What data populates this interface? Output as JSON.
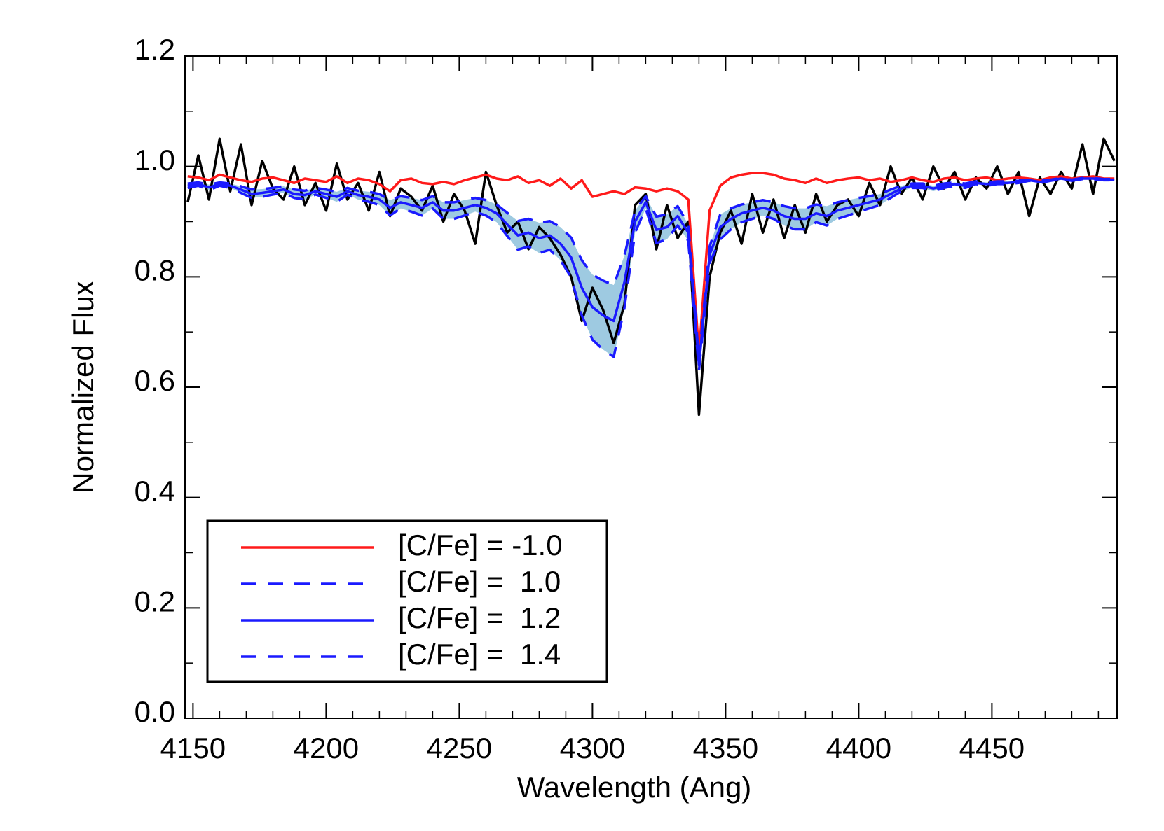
{
  "chart_data": {
    "type": "line",
    "xlabel": "Wavelength (Ang)",
    "ylabel": "Normalized Flux",
    "xlim": [
      4147,
      4497
    ],
    "ylim": [
      0,
      1.2
    ],
    "xticks": [
      4150,
      4200,
      4250,
      4300,
      4350,
      4400,
      4450
    ],
    "xminorticks": [
      4160,
      4170,
      4180,
      4190,
      4210,
      4220,
      4230,
      4240,
      4260,
      4270,
      4280,
      4290,
      4310,
      4320,
      4330,
      4340,
      4360,
      4370,
      4380,
      4390,
      4410,
      4420,
      4430,
      4440,
      4460,
      4470,
      4480,
      4490
    ],
    "yticks": [
      {
        "value": 0,
        "label": "0.0"
      },
      0.2,
      0.4,
      0.6,
      0.8,
      {
        "value": 1,
        "label": "1.0"
      },
      1.2
    ],
    "yminorticks": [
      0.1,
      0.3,
      0.5,
      0.7,
      0.9,
      1.1
    ],
    "legend": "lower left",
    "fill_between": {
      "series": [
        1,
        3
      ],
      "color": "#9ecae1"
    },
    "x": [
      4148,
      4152,
      4156,
      4160,
      4164,
      4168,
      4172,
      4176,
      4180,
      4184,
      4188,
      4192,
      4196,
      4200,
      4204,
      4208,
      4212,
      4216,
      4220,
      4224,
      4228,
      4232,
      4236,
      4240,
      4244,
      4248,
      4252,
      4256,
      4260,
      4264,
      4268,
      4272,
      4276,
      4280,
      4284,
      4288,
      4292,
      4296,
      4300,
      4304,
      4308,
      4312,
      4316,
      4320,
      4324,
      4328,
      4332,
      4336,
      4340,
      4344,
      4348,
      4352,
      4356,
      4360,
      4364,
      4368,
      4372,
      4376,
      4380,
      4384,
      4388,
      4392,
      4396,
      4400,
      4404,
      4408,
      4412,
      4416,
      4420,
      4424,
      4428,
      4432,
      4436,
      4440,
      4444,
      4448,
      4452,
      4456,
      4460,
      4464,
      4468,
      4472,
      4476,
      4480,
      4484,
      4488,
      4492,
      4496
    ],
    "series": [
      {
        "name": "[C/Fe] = -1.0",
        "color": "#ff1a1a",
        "dash": false,
        "values": [
          0.982,
          0.98,
          0.975,
          0.985,
          0.98,
          0.975,
          0.972,
          0.978,
          0.98,
          0.975,
          0.97,
          0.978,
          0.975,
          0.972,
          0.982,
          0.97,
          0.978,
          0.975,
          0.968,
          0.955,
          0.975,
          0.978,
          0.97,
          0.968,
          0.972,
          0.968,
          0.975,
          0.98,
          0.985,
          0.978,
          0.975,
          0.982,
          0.97,
          0.975,
          0.965,
          0.978,
          0.96,
          0.975,
          0.945,
          0.95,
          0.955,
          0.95,
          0.962,
          0.96,
          0.955,
          0.96,
          0.955,
          0.94,
          0.66,
          0.92,
          0.965,
          0.98,
          0.985,
          0.988,
          0.988,
          0.985,
          0.978,
          0.975,
          0.97,
          0.978,
          0.97,
          0.975,
          0.978,
          0.98,
          0.975,
          0.978,
          0.972,
          0.975,
          0.98,
          0.975,
          0.972,
          0.978,
          0.98,
          0.975,
          0.978,
          0.98,
          0.975,
          0.978,
          0.98,
          0.978,
          0.975,
          0.98,
          0.982,
          0.978,
          0.98,
          0.982,
          0.978,
          0.978
        ]
      },
      {
        "name": "[C/Fe] =  1.0",
        "color": "#1a1aff",
        "dash": true,
        "values": [
          0.969,
          0.971,
          0.967,
          0.971,
          0.969,
          0.964,
          0.958,
          0.959,
          0.961,
          0.964,
          0.958,
          0.956,
          0.961,
          0.958,
          0.954,
          0.961,
          0.956,
          0.954,
          0.95,
          0.939,
          0.946,
          0.943,
          0.939,
          0.946,
          0.935,
          0.935,
          0.939,
          0.943,
          0.939,
          0.931,
          0.916,
          0.901,
          0.905,
          0.898,
          0.901,
          0.89,
          0.871,
          0.83,
          0.804,
          0.793,
          0.785,
          0.838,
          0.92,
          0.946,
          0.909,
          0.913,
          0.928,
          0.895,
          0.65,
          0.855,
          0.913,
          0.924,
          0.931,
          0.935,
          0.939,
          0.935,
          0.928,
          0.924,
          0.924,
          0.931,
          0.928,
          0.935,
          0.939,
          0.943,
          0.946,
          0.95,
          0.958,
          0.965,
          0.969,
          0.969,
          0.965,
          0.969,
          0.971,
          0.969,
          0.973,
          0.971,
          0.973,
          0.973,
          0.974,
          0.976,
          0.974,
          0.976,
          0.979,
          0.976,
          0.979,
          0.979,
          0.977,
          0.977
        ]
      },
      {
        "name": "[C/Fe] =  1.2",
        "color": "#1a1aff",
        "dash": false,
        "values": [
          0.965,
          0.968,
          0.962,
          0.968,
          0.965,
          0.958,
          0.95,
          0.952,
          0.955,
          0.958,
          0.95,
          0.948,
          0.955,
          0.95,
          0.945,
          0.955,
          0.948,
          0.945,
          0.94,
          0.925,
          0.935,
          0.93,
          0.925,
          0.935,
          0.92,
          0.92,
          0.925,
          0.93,
          0.925,
          0.915,
          0.895,
          0.875,
          0.88,
          0.87,
          0.875,
          0.86,
          0.835,
          0.78,
          0.745,
          0.73,
          0.72,
          0.79,
          0.9,
          0.935,
          0.885,
          0.89,
          0.91,
          0.88,
          0.64,
          0.84,
          0.89,
          0.905,
          0.915,
          0.92,
          0.925,
          0.92,
          0.91,
          0.905,
          0.905,
          0.915,
          0.91,
          0.92,
          0.925,
          0.93,
          0.935,
          0.94,
          0.95,
          0.96,
          0.965,
          0.965,
          0.96,
          0.965,
          0.968,
          0.965,
          0.97,
          0.968,
          0.97,
          0.97,
          0.972,
          0.975,
          0.972,
          0.975,
          0.978,
          0.975,
          0.978,
          0.978,
          0.976,
          0.976
        ]
      },
      {
        "name": "[C/Fe] =  1.4",
        "color": "#1a1aff",
        "dash": true,
        "values": [
          0.961,
          0.965,
          0.957,
          0.965,
          0.961,
          0.952,
          0.943,
          0.945,
          0.949,
          0.952,
          0.943,
          0.94,
          0.949,
          0.943,
          0.936,
          0.949,
          0.94,
          0.936,
          0.93,
          0.911,
          0.924,
          0.918,
          0.911,
          0.924,
          0.905,
          0.905,
          0.911,
          0.918,
          0.911,
          0.899,
          0.874,
          0.849,
          0.855,
          0.843,
          0.849,
          0.83,
          0.799,
          0.73,
          0.686,
          0.668,
          0.655,
          0.743,
          0.88,
          0.924,
          0.861,
          0.868,
          0.893,
          0.865,
          0.63,
          0.825,
          0.868,
          0.886,
          0.899,
          0.905,
          0.911,
          0.905,
          0.893,
          0.886,
          0.886,
          0.899,
          0.893,
          0.905,
          0.911,
          0.918,
          0.924,
          0.93,
          0.943,
          0.955,
          0.961,
          0.961,
          0.955,
          0.961,
          0.965,
          0.961,
          0.968,
          0.965,
          0.968,
          0.968,
          0.97,
          0.974,
          0.97,
          0.974,
          0.977,
          0.974,
          0.977,
          0.977,
          0.975,
          0.975
        ]
      },
      {
        "color": "#000000",
        "dash": false,
        "values": [
          0.935,
          1.02,
          0.94,
          1.05,
          0.955,
          1.04,
          0.93,
          1.01,
          0.96,
          0.94,
          1.0,
          0.93,
          0.97,
          0.92,
          1.005,
          0.94,
          0.97,
          0.92,
          0.99,
          0.91,
          0.96,
          0.945,
          0.92,
          0.965,
          0.9,
          0.95,
          0.92,
          0.86,
          0.99,
          0.93,
          0.88,
          0.9,
          0.85,
          0.89,
          0.87,
          0.84,
          0.8,
          0.72,
          0.78,
          0.74,
          0.68,
          0.75,
          0.93,
          0.95,
          0.85,
          0.93,
          0.87,
          0.9,
          0.55,
          0.8,
          0.88,
          0.92,
          0.86,
          0.95,
          0.88,
          0.94,
          0.87,
          0.93,
          0.88,
          0.95,
          0.9,
          0.93,
          0.94,
          0.91,
          0.97,
          0.93,
          1.0,
          0.95,
          0.98,
          0.94,
          1.0,
          0.96,
          0.99,
          0.94,
          0.98,
          0.96,
          1.0,
          0.95,
          0.99,
          0.91,
          0.98,
          0.95,
          0.99,
          0.96,
          1.04,
          0.95,
          1.05,
          1.01
        ]
      }
    ]
  }
}
